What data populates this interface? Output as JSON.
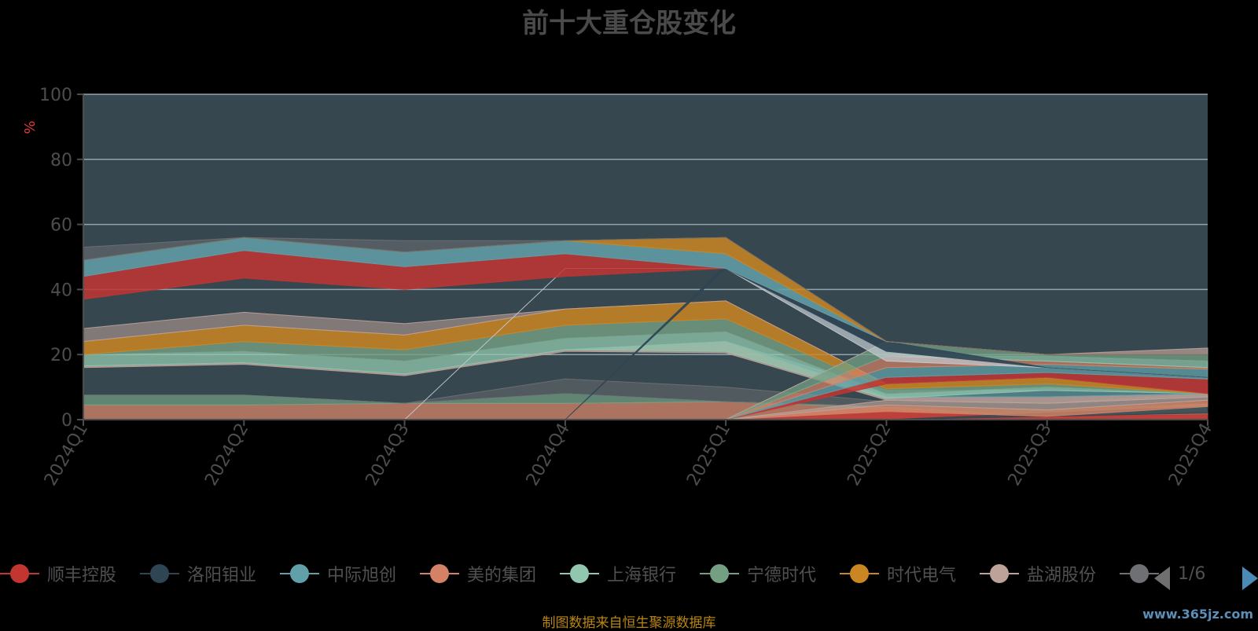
{
  "title": "前十大重仓股变化",
  "source_text": "制图数据来自恒生聚源数据库",
  "watermark": "www.365jz.com",
  "legend_page": "1/6",
  "colors": {
    "background": "#000000",
    "plot_background": "#37474f",
    "grid": "#90a4ae",
    "axis_text": "#4d4d4d",
    "unit_text": "#e53935"
  },
  "legend": [
    {
      "name": "顺丰控股",
      "color": "#c23531"
    },
    {
      "name": "洛阳钼业",
      "color": "#2f4554"
    },
    {
      "name": "中际旭创",
      "color": "#61a0a8"
    },
    {
      "name": "美的集团",
      "color": "#d48265"
    },
    {
      "name": "上海银行",
      "color": "#91c7ae"
    },
    {
      "name": "宁德时代",
      "color": "#749f83"
    },
    {
      "name": "时代电气",
      "color": "#ca8622"
    },
    {
      "name": "盐湖股份",
      "color": "#bda29a"
    },
    {
      "name": "",
      "color": "#6e7074"
    }
  ],
  "chart_data": {
    "type": "area",
    "title": "前十大重仓股变化",
    "ylabel": "%",
    "xlabel": "",
    "ylim": [
      0,
      100
    ],
    "yticks": [
      0,
      20,
      40,
      60,
      80,
      100
    ],
    "categories": [
      "2024Q1",
      "2024Q2",
      "2024Q3",
      "2024Q4",
      "2025Q1",
      "2025Q2",
      "2025Q3",
      "2025Q4"
    ],
    "grid": true,
    "legend_position": "bottom",
    "layers": [
      {
        "color": "#d48265",
        "opacity": 0.75,
        "lower": [
          0,
          0,
          0,
          0,
          0,
          0,
          0,
          0
        ],
        "upper": [
          4.5,
          4.5,
          5,
          5,
          5.5,
          4,
          0.5,
          5
        ]
      },
      {
        "color": "#749f83",
        "opacity": 0.7,
        "lower": [
          4.5,
          4.5,
          5,
          5,
          5.5,
          3.5,
          1,
          3
        ],
        "upper": [
          7.5,
          7.5,
          5,
          8,
          5.5,
          4,
          3,
          5
        ]
      },
      {
        "color": "#6e7074",
        "opacity": 0.45,
        "lower": [
          7.5,
          7.5,
          5,
          8,
          5.5,
          4,
          3,
          5
        ],
        "upper": [
          7.5,
          7.5,
          5,
          12.5,
          10,
          5.5,
          5,
          8
        ]
      },
      {
        "color": "#c23531",
        "opacity": 0.8,
        "lower": [
          0,
          0,
          0,
          0,
          0,
          0,
          0,
          0
        ],
        "upper": [
          0,
          0,
          0,
          0,
          0,
          2.5,
          1,
          1.5
        ]
      },
      {
        "color": "#2f4554",
        "opacity": 0.8,
        "lower": [
          0,
          0,
          0,
          0,
          0,
          0,
          1,
          2
        ],
        "upper": [
          0,
          0,
          0,
          0,
          0,
          0,
          2,
          4
        ]
      },
      {
        "color": "#d48265",
        "opacity": 0.8,
        "lower": [
          0,
          0,
          0,
          0,
          0,
          2.5,
          1,
          4
        ],
        "upper": [
          0,
          0,
          0,
          0,
          0,
          4.5,
          3,
          6
        ]
      },
      {
        "color": "#bda29a",
        "opacity": 0.6,
        "lower": [
          0,
          0,
          0,
          0,
          0,
          4.5,
          3,
          6
        ],
        "upper": [
          0,
          0,
          0,
          0,
          0,
          6,
          5,
          7
        ]
      },
      {
        "color": "#bda29a",
        "opacity": 0.85,
        "lower": [
          16,
          17,
          13.5,
          21,
          20.5,
          6,
          5,
          7
        ],
        "upper": [
          16.5,
          17.5,
          14,
          21.5,
          24,
          7,
          7,
          8
        ]
      },
      {
        "color": "#61a0a8",
        "opacity": 0.6,
        "lower": [
          16.5,
          17.5,
          14,
          21.5,
          24,
          7,
          7,
          8
        ],
        "upper": [
          16.5,
          17.5,
          14,
          21.5,
          24,
          9,
          9,
          8
        ]
      },
      {
        "color": "#91c7ae",
        "opacity": 0.75,
        "lower": [
          16.5,
          17.5,
          14,
          21.5,
          21,
          6.5,
          9,
          8
        ],
        "upper": [
          20,
          21,
          18,
          25,
          27,
          8,
          10,
          8
        ]
      },
      {
        "color": "#749f83",
        "opacity": 0.8,
        "lower": [
          20,
          21,
          18,
          25,
          27,
          8,
          10,
          8
        ],
        "upper": [
          20,
          24,
          21.5,
          29,
          31,
          9.5,
          11,
          8
        ]
      },
      {
        "color": "#ca8622",
        "opacity": 0.85,
        "lower": [
          20,
          24,
          21.5,
          29,
          31,
          9.5,
          11,
          8
        ],
        "upper": [
          24,
          29,
          26,
          34,
          36.5,
          11,
          13,
          8
        ]
      },
      {
        "color": "#bda29a",
        "opacity": 0.55,
        "lower": [
          24,
          29,
          26,
          34,
          36.5,
          11,
          13,
          8
        ],
        "upper": [
          28,
          33,
          29.5,
          34,
          36.5,
          11,
          13,
          8
        ]
      },
      {
        "color": "#c23531",
        "opacity": 0.85,
        "lower": [
          0,
          0,
          0,
          0,
          0,
          11,
          13,
          8
        ],
        "upper": [
          0,
          0,
          0,
          0,
          0,
          13,
          14.5,
          12.5
        ]
      },
      {
        "color": "#61a0a8",
        "opacity": 0.75,
        "lower": [
          0,
          0,
          0,
          0,
          0,
          13,
          14.5,
          12.5
        ],
        "upper": [
          0,
          0,
          0,
          0,
          0,
          16,
          17,
          15.5
        ]
      },
      {
        "color": "#d48265",
        "opacity": 0.7,
        "lower": [
          0,
          0,
          0,
          0,
          0,
          16,
          17,
          15.5
        ],
        "upper": [
          0,
          0,
          0,
          0,
          0,
          19.5,
          18,
          16
        ]
      },
      {
        "color": "#91c7ae",
        "opacity": 0.7,
        "lower": [
          0,
          0,
          0,
          0,
          0,
          19.5,
          18,
          16
        ],
        "upper": [
          0,
          0,
          0,
          0,
          0,
          19.5,
          19.5,
          18
        ]
      },
      {
        "color": "#749f83",
        "opacity": 0.75,
        "lower": [
          0,
          0,
          0,
          0,
          0,
          19.5,
          19.5,
          18
        ],
        "upper": [
          0,
          0,
          0,
          0,
          0,
          24,
          20,
          20
        ]
      },
      {
        "color": "#bda29a",
        "opacity": 0.7,
        "lower": [
          0,
          0,
          0,
          0,
          0,
          24,
          20,
          20
        ],
        "upper": [
          0,
          0,
          0,
          0,
          0,
          24,
          20,
          22
        ]
      },
      {
        "color": "#c4ccd3",
        "opacity": 0.7,
        "lower": [
          0,
          0,
          0,
          46.5,
          46.5,
          18,
          16,
          13
        ],
        "upper": [
          0,
          0,
          0,
          46.5,
          46.5,
          21,
          16,
          13
        ]
      },
      {
        "color": "#2f4554",
        "opacity": 0.9,
        "lower": [
          0,
          0,
          0,
          0,
          46.5,
          21,
          16,
          13
        ],
        "upper": [
          0,
          0,
          0,
          0,
          47.5,
          24,
          16,
          13
        ]
      },
      {
        "color": "#c23531",
        "opacity": 0.85,
        "lower": [
          37,
          43.5,
          40,
          44,
          46.5,
          24,
          20,
          20
        ],
        "upper": [
          44,
          52,
          47,
          51,
          46.5,
          24,
          20,
          20
        ]
      },
      {
        "color": "#61a0a8",
        "opacity": 0.85,
        "lower": [
          44,
          52,
          47,
          51,
          46.5,
          24,
          20,
          20
        ],
        "upper": [
          49,
          56,
          51.5,
          55,
          51,
          24,
          20,
          20
        ]
      },
      {
        "color": "#ca8622",
        "opacity": 0.85,
        "lower": [
          49,
          56,
          51.5,
          55,
          51,
          24,
          20,
          20
        ],
        "upper": [
          49,
          56,
          51.5,
          55,
          56,
          24,
          20,
          20
        ]
      },
      {
        "color": "#6e7074",
        "opacity": 0.55,
        "lower": [
          49,
          56,
          51.5,
          55,
          56,
          24,
          20,
          20
        ],
        "upper": [
          53,
          56,
          55,
          55,
          56,
          24,
          20,
          20
        ]
      }
    ]
  }
}
